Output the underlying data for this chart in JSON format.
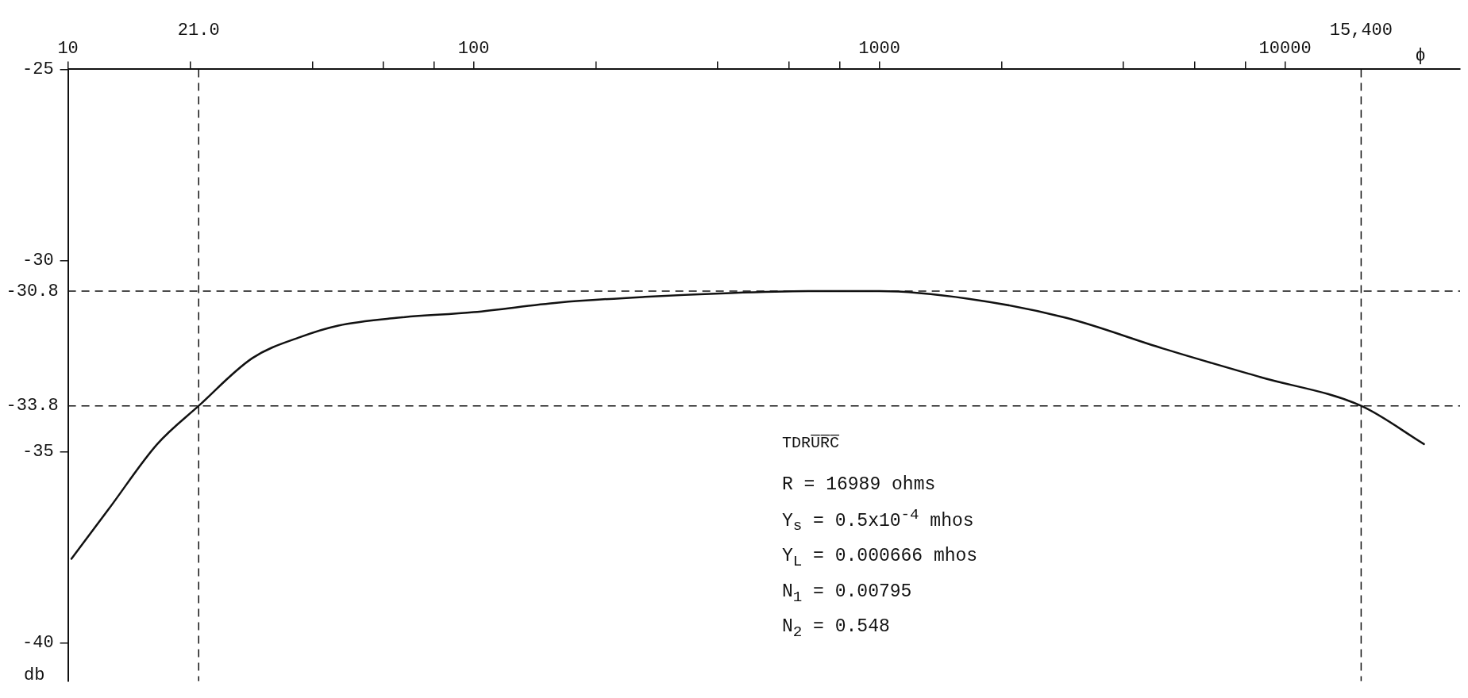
{
  "chart_data": {
    "type": "line",
    "xlabel": "ϕ",
    "ylabel": "db",
    "log": "x",
    "xlim": [
      10,
      27000
    ],
    "ylim": [
      -41,
      -25
    ],
    "xticks": [
      10,
      {
        "value": 20,
        "label": null
      },
      {
        "value": 40,
        "label": null
      },
      {
        "value": 60,
        "label": null
      },
      {
        "value": 80,
        "label": null
      },
      100,
      {
        "value": 200,
        "label": null
      },
      {
        "value": 400,
        "label": null
      },
      {
        "value": 600,
        "label": null
      },
      {
        "value": 800,
        "label": null
      },
      1000,
      {
        "value": 2000,
        "label": null
      },
      {
        "value": 4000,
        "label": null
      },
      {
        "value": 6000,
        "label": null
      },
      {
        "value": 8000,
        "label": null
      },
      10000
    ],
    "yticks": [
      -25,
      -30,
      -35,
      -40
    ],
    "x": [
      10.2,
      12.6,
      16.6,
      21,
      28.5,
      37.4,
      46.4,
      64.4,
      100,
      162,
      264,
      430,
      700,
      1000,
      1660,
      2890,
      5000,
      8700,
      15400,
      22000
    ],
    "series": [
      {
        "color": "#111111",
        "values": [
          -37.8,
          -36.5,
          -34.8,
          -33.8,
          -32.55,
          -32.0,
          -31.7,
          -31.5,
          -31.35,
          -31.1,
          -30.95,
          -30.85,
          -30.8,
          -30.8,
          -31.0,
          -31.5,
          -32.3,
          -33.05,
          -33.8,
          -34.8
        ]
      }
    ],
    "ref_lines": [
      {
        "axis": "x",
        "value": 21,
        "label": "21.0",
        "line_style": "dashed"
      },
      {
        "axis": "x",
        "value": 15400,
        "label": "15,400",
        "line_style": "dashed"
      },
      {
        "axis": "y",
        "value": -30.8,
        "label": "-30.8",
        "line_style": "dashed"
      },
      {
        "axis": "y",
        "value": -33.8,
        "label": "-33.8",
        "line_style": "dashed"
      }
    ],
    "annotations": [
      "TDRU̅R̅C̅",
      "R = 16989 ohms",
      "Y$_{s}$ = 0.5x10$^{-4}$ mhos",
      "Y$_{L}$ = 0.000666 mhos",
      "N$_{1}$ = 0.00795",
      "N$_{2}$ = 0.548"
    ],
    "grid": false,
    "legend": false,
    "marker": "none"
  }
}
